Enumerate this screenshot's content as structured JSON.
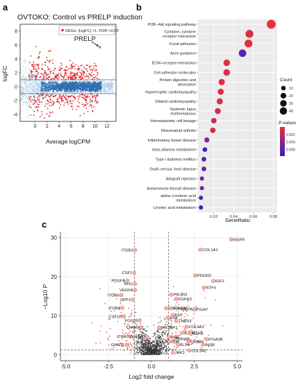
{
  "figure": {
    "panel_letters": [
      "a",
      "b",
      "c"
    ]
  },
  "chart_data": [
    {
      "panel": "a",
      "type": "scatter",
      "title": "OVTOKO: Control vs PRELP induction",
      "xlabel": "Average logCPM",
      "ylabel": "logFC",
      "xlim": [
        -2.5,
        13.5
      ],
      "ylim": [
        -5,
        9
      ],
      "x_ticks": [
        0,
        2,
        4,
        6,
        8,
        10,
        12
      ],
      "y_ticks": [
        -4,
        -2,
        0,
        2,
        4,
        6,
        8
      ],
      "threshold_lines": [
        1,
        -1
      ],
      "legend": {
        "position": "top-right",
        "label": "DEGs: |logFC| >1, FDR <0.05",
        "color": "#e02020"
      },
      "annotations": [
        {
          "text": "PRELP",
          "x": 10.8,
          "y": 5.7,
          "color": "#44c244"
        }
      ],
      "colors": {
        "density": "#2f6fb0",
        "density_light": "#a9cde8",
        "degs": "#e02020"
      }
    },
    {
      "panel": "b",
      "type": "scatter",
      "xlabel": "GeneRatio",
      "ylabel": "",
      "xlim": [
        0.004,
        0.084
      ],
      "x_ticks": [
        0.02,
        0.04,
        0.06,
        0.08
      ],
      "x_tick_labels": [
        "0.02",
        "0.04",
        "0.06",
        "0.08"
      ],
      "categories": [
        "PI3K–Akt signaling pathway",
        "Cytokine–cytokine receptor interaction",
        "Focal adhesion",
        "Axon guidance",
        "ECM–receptor interaction",
        "Cell adhesion molecules",
        "Protein digestion and absorption",
        "Hypertrophic cardiomyopathy",
        "Dilated cardiomyopathy",
        "Systemic lupus erythematosus",
        "Hematopoietic cell lineage",
        "Rheumatoid arthritis",
        "Inflammatory bowel disease",
        "beta–Alanine metabolism",
        "Type I diabetes mellitus",
        "Graft–versus–host disease",
        "Allograft rejection",
        "Autoimmune thyroid disease",
        "alpha–Linolenic acid metabolism",
        "Linoleic acid metabolism"
      ],
      "gene_ratio": [
        0.078,
        0.056,
        0.055,
        0.049,
        0.033,
        0.033,
        0.028,
        0.027,
        0.026,
        0.024,
        0.02,
        0.019,
        0.013,
        0.011,
        0.01,
        0.01,
        0.008,
        0.008,
        0.007,
        0.007
      ],
      "count": [
        45,
        32,
        31,
        28,
        19,
        19,
        16,
        15,
        15,
        14,
        11,
        11,
        8,
        6,
        6,
        6,
        4,
        4,
        4,
        4
      ],
      "p_value": [
        1e-07,
        0.0005,
        0.0003,
        0.006,
        0.0004,
        0.0006,
        0.0007,
        0.0005,
        0.0007,
        0.0009,
        0.0015,
        0.0008,
        0.0045,
        0.0075,
        0.0065,
        0.006,
        0.0055,
        0.005,
        0.007,
        0.0078
      ],
      "legend_count": {
        "title": "Count",
        "values": [
          10,
          20,
          30,
          40
        ],
        "position": "right"
      },
      "legend_pvalue": {
        "title": "P-values",
        "ticks": [
          0.002,
          0.004,
          0.006
        ],
        "tick_labels": [
          "0.002",
          "0.004",
          "0.006"
        ],
        "position": "right"
      },
      "colors": {
        "low_p": "#e8303a",
        "high_p": "#3020d0"
      }
    },
    {
      "panel": "c",
      "type": "scatter",
      "xlabel": "Log2 fold change",
      "ylabel": "−Log10 P",
      "xlim": [
        -5.3,
        5.3
      ],
      "ylim": [
        -1.5,
        31.5
      ],
      "x_ticks": [
        -5,
        -2.5,
        0,
        2.5,
        5
      ],
      "x_tick_labels": [
        "-5.0",
        "-2.5",
        "0.0",
        "2.5",
        "5.0"
      ],
      "y_ticks": [
        0,
        10,
        20,
        30
      ],
      "threshold_fc": [
        -1,
        1
      ],
      "threshold_p": 1.3,
      "labeled_genes": [
        {
          "gene": "NGFR",
          "x": 4.65,
          "y": 29.5
        },
        {
          "gene": "ITGB3",
          "x": -0.95,
          "y": 26.8
        },
        {
          "gene": "COL1A1",
          "x": 2.85,
          "y": 26.9
        },
        {
          "gene": "PDGFD",
          "x": 2.55,
          "y": 20.3
        },
        {
          "gene": "CSF1",
          "x": -1.0,
          "y": 21.0
        },
        {
          "gene": "IGF2",
          "x": 3.6,
          "y": 18.9
        },
        {
          "gene": "PDGFB",
          "x": -1.4,
          "y": 19.0
        },
        {
          "gene": "IRS1",
          "x": -0.95,
          "y": 18.2
        },
        {
          "gene": "NTF4",
          "x": 3.05,
          "y": 17.2
        },
        {
          "gene": "VEGFA",
          "x": -0.95,
          "y": 16.6
        },
        {
          "gene": "ITGB6",
          "x": -1.75,
          "y": 15.3
        },
        {
          "gene": "PIK3R3",
          "x": 1.15,
          "y": 15.4
        },
        {
          "gene": "SPP1",
          "x": -1.1,
          "y": 14.1
        },
        {
          "gene": "FGFR3",
          "x": 1.45,
          "y": 14.3
        },
        {
          "gene": "ITGB4",
          "x": -1.7,
          "y": 12.0
        },
        {
          "gene": "PPP2R3B",
          "x": 0.85,
          "y": 11.9
        },
        {
          "gene": "LPAR2",
          "x": 1.85,
          "y": 11.7
        },
        {
          "gene": "ITGA7",
          "x": 2.5,
          "y": 11.6
        },
        {
          "gene": "CSF1R",
          "x": -1.6,
          "y": 9.8
        },
        {
          "gene": "EGF",
          "x": 0.95,
          "y": 9.5
        },
        {
          "gene": "THBS4",
          "x": 1.45,
          "y": 8.7
        },
        {
          "gene": "FGF18",
          "x": -0.7,
          "y": 8.8
        },
        {
          "gene": "LPAR1",
          "x": -0.6,
          "y": 7.0
        },
        {
          "gene": "PIK3AP1",
          "x": 0.45,
          "y": 7.0
        },
        {
          "gene": "COL9A1",
          "x": 2.05,
          "y": 7.2
        },
        {
          "gene": "CHAD",
          "x": 1.85,
          "y": 5.7
        },
        {
          "gene": "IL2RB",
          "x": 2.25,
          "y": 5.5
        },
        {
          "gene": "ITGA3",
          "x": -1.2,
          "y": 4.7
        },
        {
          "gene": "COL6A1",
          "x": -0.25,
          "y": 4.6
        },
        {
          "gene": "ITGA2B",
          "x": 3.2,
          "y": 4.0
        },
        {
          "gene": "ERBB4",
          "x": 2.15,
          "y": 3.4
        },
        {
          "gene": "INSR",
          "x": 3.0,
          "y": 2.6
        },
        {
          "gene": "GNG11",
          "x": -1.45,
          "y": 2.6
        },
        {
          "gene": "COL9A2",
          "x": 2.2,
          "y": 1.1
        },
        {
          "gene": "JAK3",
          "x": 1.25,
          "y": 0.6
        },
        {
          "gene": "COL6A1",
          "x": 1.1,
          "y": 11.9
        },
        {
          "gene": "KNT",
          "x": 1.25,
          "y": 10.2
        },
        {
          "gene": "FLT4",
          "x": 1.55,
          "y": 2.6
        },
        {
          "gene": "RAC",
          "x": 1.0,
          "y": 4.6
        },
        {
          "gene": "PGF",
          "x": 1.05,
          "y": 3.4
        },
        {
          "gene": "PRKAR",
          "x": 1.3,
          "y": 4.1
        }
      ],
      "colors": {
        "ns": "#333333",
        "fc_only": "#6b8f3a",
        "sig": "#d94a3b",
        "sig_light": "#f1b3aa"
      }
    }
  ]
}
